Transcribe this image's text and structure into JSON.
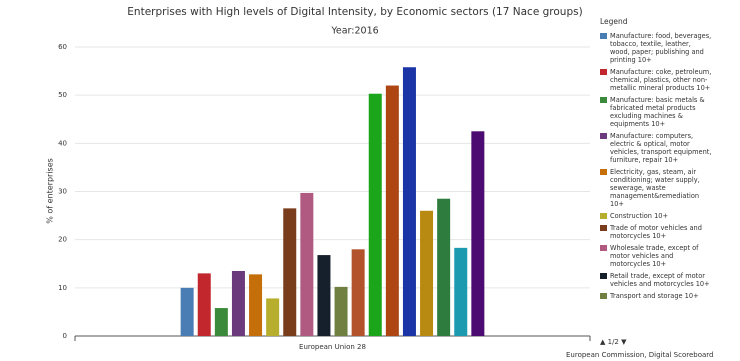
{
  "chart_data": {
    "type": "bar",
    "title": "Enterprises with High levels of Digital Intensity, by Economic sectors (17 Nace groups)",
    "subtitle": "Year:2016",
    "y_label": "% of enterprises",
    "legend_title": "Legend",
    "legend_page": "1/2",
    "credit": "European Commission, Digital Scoreboard",
    "categories": [
      "European Union 28"
    ],
    "ylim": [
      0,
      60
    ],
    "yticks": [
      0,
      10,
      20,
      30,
      40,
      50,
      60
    ],
    "grid": true,
    "series": [
      {
        "name": "Manufacture: food, beverages, tobacco, textile, leather, wood, paper; publishing and printing 10+",
        "color": "#4a7db3",
        "values": [
          10
        ]
      },
      {
        "name": "Manufacture: coke, petroleum, chemical, plastics, other non-metallic mineral products 10+",
        "color": "#c1272d",
        "values": [
          13
        ]
      },
      {
        "name": "Manufacture: basic metals & fabricated metal products excluding machines & equipments 10+",
        "color": "#3b8a3b",
        "values": [
          5.8
        ]
      },
      {
        "name": "Manufacture: computers, electric & optical, motor vehicles, transport equipment, furniture, repair 10+",
        "color": "#6b3a7d",
        "values": [
          13.5
        ]
      },
      {
        "name": "Electricity, gas, steam, air conditioning; water supply, sewerage, waste management&remediation 10+",
        "color": "#c46f0a",
        "values": [
          12.8
        ]
      },
      {
        "name": "Construction 10+",
        "color": "#b8ae2e",
        "values": [
          7.8
        ]
      },
      {
        "name": "Trade of motor vehicles and motorcycles 10+",
        "color": "#7a3d1c",
        "values": [
          26.5
        ]
      },
      {
        "name": "Wholesale trade, except of motor vehicles and motorcycles 10+",
        "color": "#b05a82",
        "values": [
          29.7
        ]
      },
      {
        "name": "Retail trade, except of motor vehicles and motorcycles 10+",
        "color": "#15202c",
        "values": [
          16.8
        ]
      },
      {
        "name": "Transport and storage 10+",
        "color": "#708040",
        "values": [
          10.2
        ]
      },
      {
        "color": "#b3532c",
        "values": [
          18
        ]
      },
      {
        "color": "#1aa51a",
        "values": [
          50.3
        ]
      },
      {
        "color": "#ad4612",
        "values": [
          52
        ]
      },
      {
        "color": "#1b35a6",
        "values": [
          55.8
        ]
      },
      {
        "color": "#b88a12",
        "values": [
          26
        ]
      },
      {
        "color": "#2e7d3e",
        "values": [
          28.5
        ]
      },
      {
        "color": "#1b9ab0",
        "values": [
          18.3
        ]
      },
      {
        "color": "#4b0b70",
        "values": [
          42.5
        ]
      }
    ]
  }
}
